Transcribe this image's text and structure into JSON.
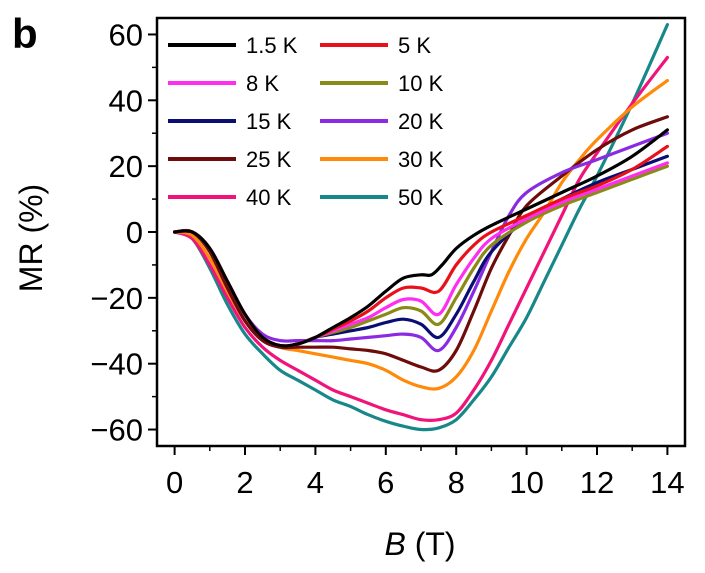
{
  "panel_label": "b",
  "chart_data": {
    "type": "line",
    "xlabel_italic": "B",
    "xlabel_rest": " (T)",
    "ylabel": "MR (%)",
    "xlim": [
      -0.5,
      14.5
    ],
    "ylim": [
      -65,
      65
    ],
    "xticks": [
      0,
      2,
      4,
      6,
      8,
      10,
      12,
      14
    ],
    "yticks": [
      -60,
      -40,
      -20,
      0,
      20,
      40,
      60
    ],
    "legend_position": "top-left",
    "series": [
      {
        "name": "1.5 K",
        "color": "#000000",
        "points": [
          [
            0,
            0
          ],
          [
            0.5,
            0
          ],
          [
            1,
            -5
          ],
          [
            1.5,
            -15
          ],
          [
            2,
            -25
          ],
          [
            2.5,
            -32
          ],
          [
            3,
            -34.5
          ],
          [
            3.5,
            -34
          ],
          [
            4,
            -32
          ],
          [
            4.5,
            -29
          ],
          [
            5,
            -26
          ],
          [
            5.5,
            -22.5
          ],
          [
            6,
            -18
          ],
          [
            6.5,
            -14
          ],
          [
            7,
            -13
          ],
          [
            7.3,
            -13
          ],
          [
            7.6,
            -10
          ],
          [
            8,
            -5
          ],
          [
            8.5,
            -1
          ],
          [
            9,
            2
          ],
          [
            10,
            7
          ],
          [
            11,
            12
          ],
          [
            12,
            17
          ],
          [
            13,
            23
          ],
          [
            14,
            31
          ]
        ]
      },
      {
        "name": "5 K",
        "color": "#e8111b",
        "points": [
          [
            0,
            0
          ],
          [
            0.5,
            0
          ],
          [
            1,
            -5
          ],
          [
            1.5,
            -15
          ],
          [
            2,
            -25
          ],
          [
            2.5,
            -32
          ],
          [
            3,
            -34.5
          ],
          [
            3.5,
            -34
          ],
          [
            4,
            -32
          ],
          [
            4.5,
            -29.5
          ],
          [
            5,
            -27
          ],
          [
            5.5,
            -24
          ],
          [
            6,
            -20
          ],
          [
            6.5,
            -17
          ],
          [
            7,
            -17
          ],
          [
            7.5,
            -18
          ],
          [
            8,
            -10
          ],
          [
            8.5,
            -4
          ],
          [
            9,
            0
          ],
          [
            10,
            5
          ],
          [
            11,
            10
          ],
          [
            12,
            14
          ],
          [
            13,
            19
          ],
          [
            14,
            26
          ]
        ]
      },
      {
        "name": "8 K",
        "color": "#ff2df0",
        "points": [
          [
            0,
            0
          ],
          [
            0.5,
            0
          ],
          [
            1,
            -5
          ],
          [
            1.5,
            -15
          ],
          [
            2,
            -25
          ],
          [
            2.5,
            -32
          ],
          [
            3,
            -34.5
          ],
          [
            3.5,
            -34
          ],
          [
            4,
            -32
          ],
          [
            4.5,
            -30
          ],
          [
            5,
            -28
          ],
          [
            5.5,
            -26
          ],
          [
            6,
            -23
          ],
          [
            6.5,
            -20.5
          ],
          [
            7,
            -21
          ],
          [
            7.5,
            -25
          ],
          [
            8,
            -16
          ],
          [
            8.5,
            -8
          ],
          [
            9,
            -2
          ],
          [
            10,
            4
          ],
          [
            11,
            9
          ],
          [
            12,
            13
          ],
          [
            13,
            17
          ],
          [
            14,
            21
          ]
        ]
      },
      {
        "name": "10 K",
        "color": "#8a8a16",
        "points": [
          [
            0,
            0
          ],
          [
            0.5,
            0
          ],
          [
            1,
            -5
          ],
          [
            1.5,
            -15
          ],
          [
            2,
            -25
          ],
          [
            2.5,
            -32
          ],
          [
            3,
            -34.5
          ],
          [
            3.5,
            -34
          ],
          [
            4,
            -32
          ],
          [
            4.5,
            -30.5
          ],
          [
            5,
            -29
          ],
          [
            5.5,
            -27
          ],
          [
            6,
            -25
          ],
          [
            6.5,
            -23
          ],
          [
            7,
            -24
          ],
          [
            7.5,
            -28
          ],
          [
            8,
            -20
          ],
          [
            8.5,
            -11
          ],
          [
            9,
            -4
          ],
          [
            10,
            3
          ],
          [
            11,
            8
          ],
          [
            12,
            12
          ],
          [
            13,
            16
          ],
          [
            14,
            20
          ]
        ]
      },
      {
        "name": "15 K",
        "color": "#0a0e73",
        "points": [
          [
            0,
            0
          ],
          [
            0.5,
            0
          ],
          [
            1,
            -5
          ],
          [
            1.5,
            -15
          ],
          [
            2,
            -25
          ],
          [
            2.5,
            -32
          ],
          [
            3,
            -34.5
          ],
          [
            3.5,
            -34
          ],
          [
            4,
            -32
          ],
          [
            4.5,
            -31
          ],
          [
            5,
            -30
          ],
          [
            5.5,
            -29
          ],
          [
            6,
            -27.5
          ],
          [
            6.5,
            -26.5
          ],
          [
            7,
            -28
          ],
          [
            7.5,
            -32
          ],
          [
            8,
            -25
          ],
          [
            8.5,
            -15
          ],
          [
            9,
            -6
          ],
          [
            10,
            4
          ],
          [
            11,
            10
          ],
          [
            12,
            15
          ],
          [
            13,
            19
          ],
          [
            14,
            23
          ]
        ]
      },
      {
        "name": "20 K",
        "color": "#8a2be2",
        "points": [
          [
            0,
            0
          ],
          [
            0.5,
            0
          ],
          [
            1,
            -5
          ],
          [
            1.5,
            -15
          ],
          [
            2,
            -25
          ],
          [
            2.5,
            -31
          ],
          [
            3,
            -33
          ],
          [
            3.5,
            -33
          ],
          [
            4,
            -33
          ],
          [
            4.5,
            -33
          ],
          [
            5,
            -32.5
          ],
          [
            5.5,
            -32
          ],
          [
            6,
            -31.5
          ],
          [
            6.5,
            -31
          ],
          [
            7,
            -32
          ],
          [
            7.5,
            -36
          ],
          [
            8,
            -29
          ],
          [
            8.5,
            -18
          ],
          [
            9,
            -6
          ],
          [
            9.5,
            5
          ],
          [
            10,
            12
          ],
          [
            11,
            18
          ],
          [
            12,
            22
          ],
          [
            13,
            26
          ],
          [
            14,
            30
          ]
        ]
      },
      {
        "name": "25 K",
        "color": "#6e0b0b",
        "points": [
          [
            0,
            0
          ],
          [
            0.5,
            0
          ],
          [
            1,
            -6
          ],
          [
            1.5,
            -17
          ],
          [
            2,
            -27
          ],
          [
            2.5,
            -33
          ],
          [
            3,
            -35
          ],
          [
            3.5,
            -35
          ],
          [
            4,
            -35
          ],
          [
            4.5,
            -35
          ],
          [
            5,
            -35.5
          ],
          [
            5.5,
            -36
          ],
          [
            6,
            -37
          ],
          [
            6.5,
            -39
          ],
          [
            7,
            -41
          ],
          [
            7.5,
            -42
          ],
          [
            8,
            -36
          ],
          [
            8.5,
            -24
          ],
          [
            9,
            -11
          ],
          [
            9.5,
            -1
          ],
          [
            10,
            8
          ],
          [
            11,
            17
          ],
          [
            12,
            25
          ],
          [
            13,
            31
          ],
          [
            14,
            35
          ]
        ]
      },
      {
        "name": "30 K",
        "color": "#ff8a0a",
        "points": [
          [
            0,
            0
          ],
          [
            0.5,
            -1
          ],
          [
            1,
            -8
          ],
          [
            1.5,
            -18
          ],
          [
            2,
            -27
          ],
          [
            2.5,
            -32
          ],
          [
            3,
            -35
          ],
          [
            3.5,
            -36
          ],
          [
            4,
            -37
          ],
          [
            4.5,
            -38
          ],
          [
            5,
            -39
          ],
          [
            5.5,
            -40
          ],
          [
            6,
            -42
          ],
          [
            6.5,
            -45
          ],
          [
            7,
            -47
          ],
          [
            7.5,
            -47.5
          ],
          [
            8,
            -44
          ],
          [
            8.5,
            -36
          ],
          [
            9,
            -24
          ],
          [
            9.5,
            -12
          ],
          [
            10,
            -2
          ],
          [
            10.5,
            6
          ],
          [
            11,
            15
          ],
          [
            11.5,
            22
          ],
          [
            12,
            28
          ],
          [
            13,
            38
          ],
          [
            14,
            46
          ]
        ]
      },
      {
        "name": "40 K",
        "color": "#f0147a",
        "points": [
          [
            0,
            0
          ],
          [
            0.5,
            -2
          ],
          [
            1,
            -10
          ],
          [
            1.5,
            -20
          ],
          [
            2,
            -29
          ],
          [
            2.5,
            -35
          ],
          [
            3,
            -39
          ],
          [
            3.5,
            -42
          ],
          [
            4,
            -45
          ],
          [
            4.5,
            -48
          ],
          [
            5,
            -50
          ],
          [
            5.5,
            -52
          ],
          [
            6,
            -54
          ],
          [
            6.5,
            -55.5
          ],
          [
            7,
            -57
          ],
          [
            7.5,
            -57
          ],
          [
            8,
            -55
          ],
          [
            8.5,
            -48
          ],
          [
            9,
            -39
          ],
          [
            9.5,
            -28
          ],
          [
            10,
            -17
          ],
          [
            10.5,
            -6
          ],
          [
            11,
            5
          ],
          [
            11.5,
            16
          ],
          [
            12,
            24
          ],
          [
            13,
            39
          ],
          [
            14,
            53
          ]
        ]
      },
      {
        "name": "50 K",
        "color": "#18878a",
        "points": [
          [
            0,
            0
          ],
          [
            0.5,
            -2
          ],
          [
            1,
            -11
          ],
          [
            1.5,
            -22
          ],
          [
            2,
            -31
          ],
          [
            2.5,
            -37
          ],
          [
            3,
            -42
          ],
          [
            3.5,
            -45
          ],
          [
            4,
            -48
          ],
          [
            4.5,
            -51
          ],
          [
            5,
            -53
          ],
          [
            5.5,
            -55.5
          ],
          [
            6,
            -57.5
          ],
          [
            6.5,
            -59
          ],
          [
            7,
            -60
          ],
          [
            7.5,
            -59.5
          ],
          [
            8,
            -57
          ],
          [
            8.5,
            -51
          ],
          [
            9,
            -44
          ],
          [
            9.5,
            -35
          ],
          [
            10,
            -26
          ],
          [
            10.5,
            -15
          ],
          [
            11,
            -4
          ],
          [
            11.5,
            7
          ],
          [
            12,
            17
          ],
          [
            13,
            39
          ],
          [
            14,
            63
          ]
        ]
      }
    ]
  }
}
